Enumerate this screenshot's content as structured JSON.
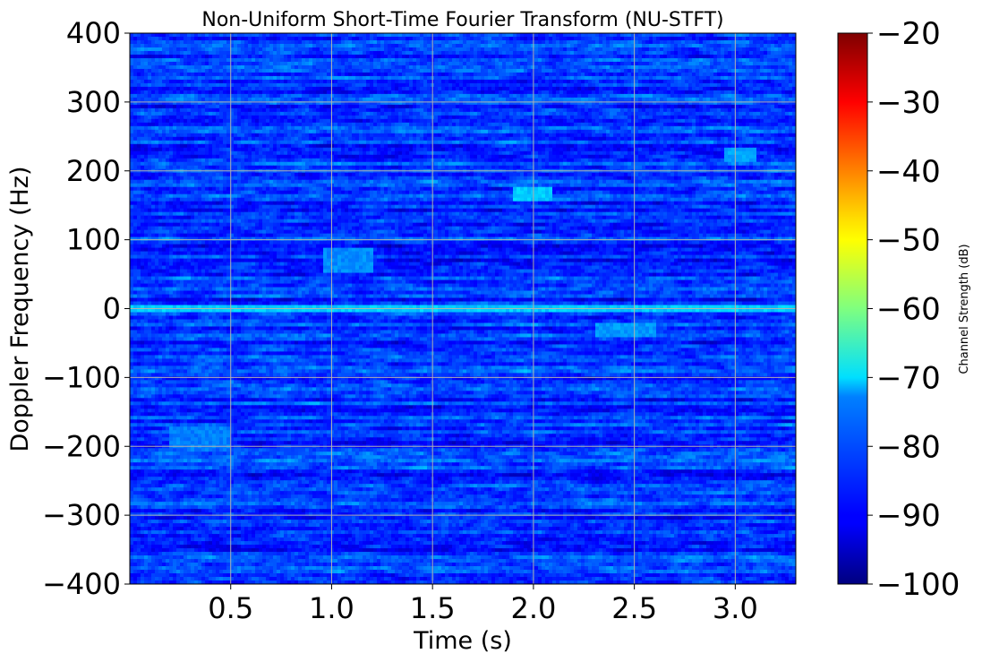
{
  "chart_data": {
    "type": "heatmap",
    "title": "Non-Uniform Short-Time Fourier Transform (NU-STFT)",
    "xlabel": "Time (s)",
    "ylabel": "Doppler Frequency (Hz)",
    "xlim": [
      0.0,
      3.3
    ],
    "ylim": [
      -400,
      400
    ],
    "x_ticks": [
      0.5,
      1.0,
      1.5,
      2.0,
      2.5,
      3.0
    ],
    "x_tick_labels": [
      "0.5",
      "1.0",
      "1.5",
      "2.0",
      "2.5",
      "3.0"
    ],
    "y_ticks": [
      400,
      300,
      200,
      100,
      0,
      -100,
      -200,
      -300,
      -400
    ],
    "y_tick_labels": [
      "400",
      "300",
      "200",
      "100",
      "0",
      "−100",
      "−200",
      "−300",
      "−400"
    ],
    "grid": true,
    "colormap": "jet",
    "colorbar": {
      "label": "Channel Strength (dB)",
      "range": [
        -100,
        -20
      ],
      "ticks": [
        -20,
        -30,
        -40,
        -50,
        -60,
        -70,
        -80,
        -90,
        -100
      ],
      "tick_labels": [
        "−20",
        "−30",
        "−40",
        "−50",
        "−60",
        "−70",
        "−80",
        "−90",
        "−100"
      ]
    },
    "baseline_db": -86,
    "features": [
      {
        "name": "zero-doppler line",
        "doppler_hz": 0,
        "time_range_s": [
          0.0,
          3.3
        ],
        "strength_db": -74
      },
      {
        "name": "bright patch",
        "time_range_s": [
          1.9,
          2.1
        ],
        "doppler_range_hz": [
          155,
          175
        ],
        "strength_db": -74
      },
      {
        "name": "bright patch",
        "time_range_s": [
          2.95,
          3.1
        ],
        "doppler_range_hz": [
          215,
          235
        ],
        "strength_db": -77
      },
      {
        "name": "bright patch",
        "time_range_s": [
          0.95,
          1.2
        ],
        "doppler_range_hz": [
          50,
          90
        ],
        "strength_db": -79
      },
      {
        "name": "bright patch",
        "time_range_s": [
          2.3,
          2.6
        ],
        "doppler_range_hz": [
          -40,
          -20
        ],
        "strength_db": -78
      },
      {
        "name": "bright patch",
        "time_range_s": [
          0.2,
          0.5
        ],
        "doppler_range_hz": [
          -200,
          -170
        ],
        "strength_db": -80
      }
    ]
  }
}
